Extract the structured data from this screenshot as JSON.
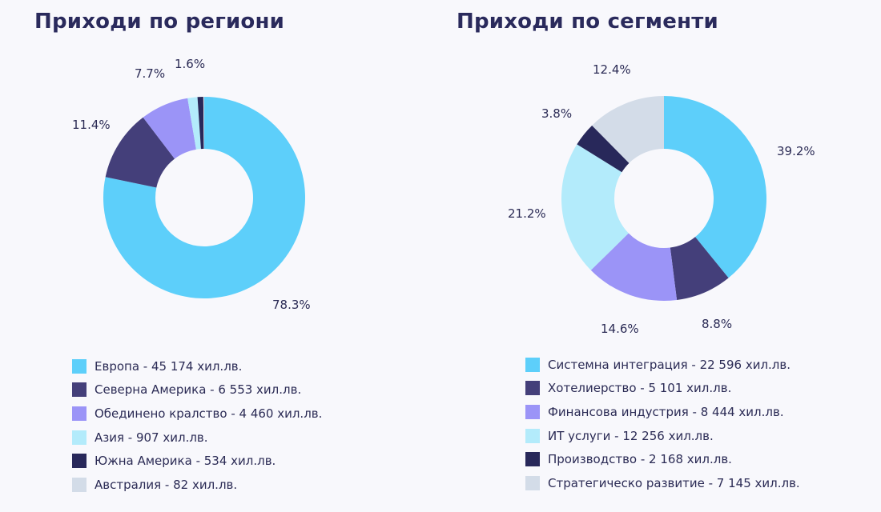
{
  "chart_data": [
    {
      "type": "donut",
      "title": "Приходи по региони",
      "series": [
        {
          "label": "Европа - 45 174 хил.лв.",
          "value": 45174,
          "percent_label": "78.3%",
          "color": "#5dcffa"
        },
        {
          "label": "Северна Америка - 6 553 хил.лв.",
          "value": 6553,
          "percent_label": "11.4%",
          "color": "#443f7a"
        },
        {
          "label": "Обединено кралство - 4 460 хил.лв.",
          "value": 4460,
          "percent_label": "7.7%",
          "color": "#9b94f7"
        },
        {
          "label": "Азия - 907 хил.лв.",
          "value": 907,
          "percent_label": "1.6%",
          "color": "#b3ebfb"
        },
        {
          "label": "Южна Америка - 534 хил.лв.",
          "value": 534,
          "percent_label": "",
          "color": "#28285a"
        },
        {
          "label": "Австралия - 82 хил.лв.",
          "value": 82,
          "percent_label": "",
          "color": "#d3dce8"
        }
      ]
    },
    {
      "type": "donut",
      "title": "Приходи по сегменти",
      "series": [
        {
          "label": "Системна интеграция - 22 596 хил.лв.",
          "value": 22596,
          "percent_label": "39.2%",
          "color": "#5dcffa"
        },
        {
          "label": "Хотелиерство - 5 101 хил.лв.",
          "value": 5101,
          "percent_label": "8.8%",
          "color": "#443f7a"
        },
        {
          "label": "Финансова индустрия - 8 444 хил.лв.",
          "value": 8444,
          "percent_label": "14.6%",
          "color": "#9b94f7"
        },
        {
          "label": "ИТ услуги - 12 256 хил.лв.",
          "value": 12256,
          "percent_label": "21.2%",
          "color": "#b3ebfb"
        },
        {
          "label": "Производство - 2 168 хил.лв.",
          "value": 2168,
          "percent_label": "3.8%",
          "color": "#28285a"
        },
        {
          "label": "Стратегическо развитие - 7 145 хил.лв.",
          "value": 7145,
          "percent_label": "12.4%",
          "color": "#d3dce8"
        }
      ]
    }
  ]
}
